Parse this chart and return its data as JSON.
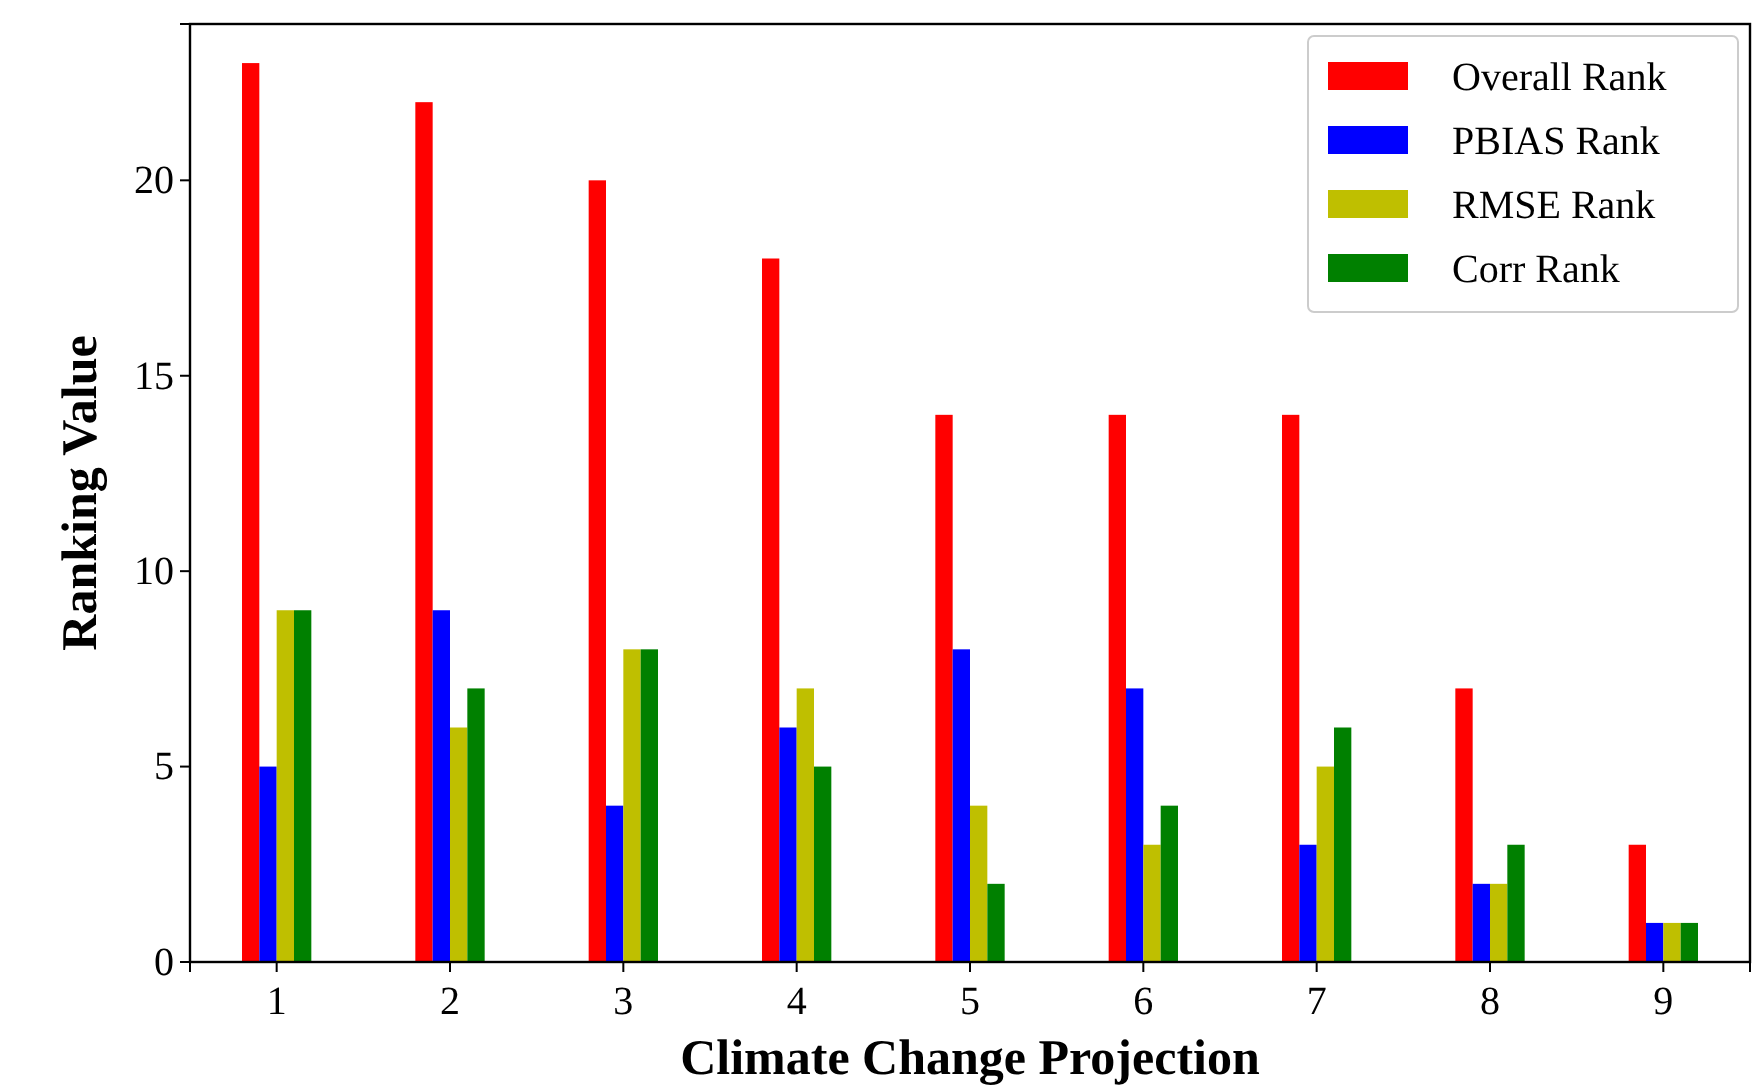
{
  "chart_data": {
    "type": "bar",
    "xlabel": "Climate Change Projection",
    "ylabel": "Ranking Value",
    "categories": [
      "1",
      "2",
      "3",
      "4",
      "5",
      "6",
      "7",
      "8",
      "9"
    ],
    "series": [
      {
        "name": "Overall Rank",
        "color": "#ff0000",
        "values": [
          23,
          22,
          20,
          18,
          14,
          14,
          14,
          7,
          3
        ]
      },
      {
        "name": "PBIAS Rank",
        "color": "#0000ff",
        "values": [
          5,
          9,
          4,
          6,
          8,
          7,
          3,
          2,
          1
        ]
      },
      {
        "name": "RMSE Rank",
        "color": "#bfbf00",
        "values": [
          9,
          6,
          8,
          7,
          4,
          3,
          5,
          2,
          1
        ]
      },
      {
        "name": "Corr Rank",
        "color": "#008000",
        "values": [
          9,
          7,
          8,
          5,
          2,
          4,
          6,
          3,
          1
        ]
      }
    ],
    "ylim": [
      0,
      24
    ],
    "yticks": [
      0,
      5,
      10,
      15,
      20
    ],
    "grid": false,
    "legend": "top right"
  }
}
